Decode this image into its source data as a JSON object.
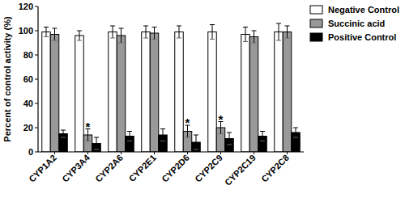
{
  "chart_data": {
    "type": "bar",
    "categories": [
      "CYP1A2",
      "CYP3A4",
      "CYP2A6",
      "CYP2E1",
      "CYP2D6",
      "CYP2C9",
      "CYP2C19",
      "CYP2C8"
    ],
    "series": [
      {
        "name": "Negative Control",
        "color": "#ffffff",
        "values": [
          99,
          96,
          99,
          99,
          99,
          99,
          97,
          99
        ],
        "errors": [
          4,
          4,
          5,
          5,
          5,
          6,
          6,
          7
        ]
      },
      {
        "name": "Succinic acid",
        "color": "#999999",
        "values": [
          97,
          14,
          96,
          98,
          17,
          20,
          95,
          99
        ],
        "errors": [
          5,
          5,
          6,
          5,
          5,
          5,
          5,
          5
        ]
      },
      {
        "name": "Positive Control",
        "color": "#000000",
        "values": [
          15,
          7,
          13,
          14,
          8,
          11,
          13,
          16
        ],
        "errors": [
          3,
          5,
          4,
          5,
          6,
          5,
          4,
          4
        ]
      }
    ],
    "y_label": "Percent of control activity (%)",
    "ylim": [
      0,
      120
    ],
    "yticks": [
      0,
      20,
      40,
      60,
      80,
      100,
      120
    ],
    "legend": "right",
    "annotations": [
      {
        "text": "*",
        "category": "CYP3A4",
        "series": "Succinic acid"
      },
      {
        "text": "*",
        "category": "CYP2D6",
        "series": "Succinic acid"
      },
      {
        "text": "*",
        "category": "CYP2C9",
        "series": "Succinic acid"
      }
    ]
  }
}
